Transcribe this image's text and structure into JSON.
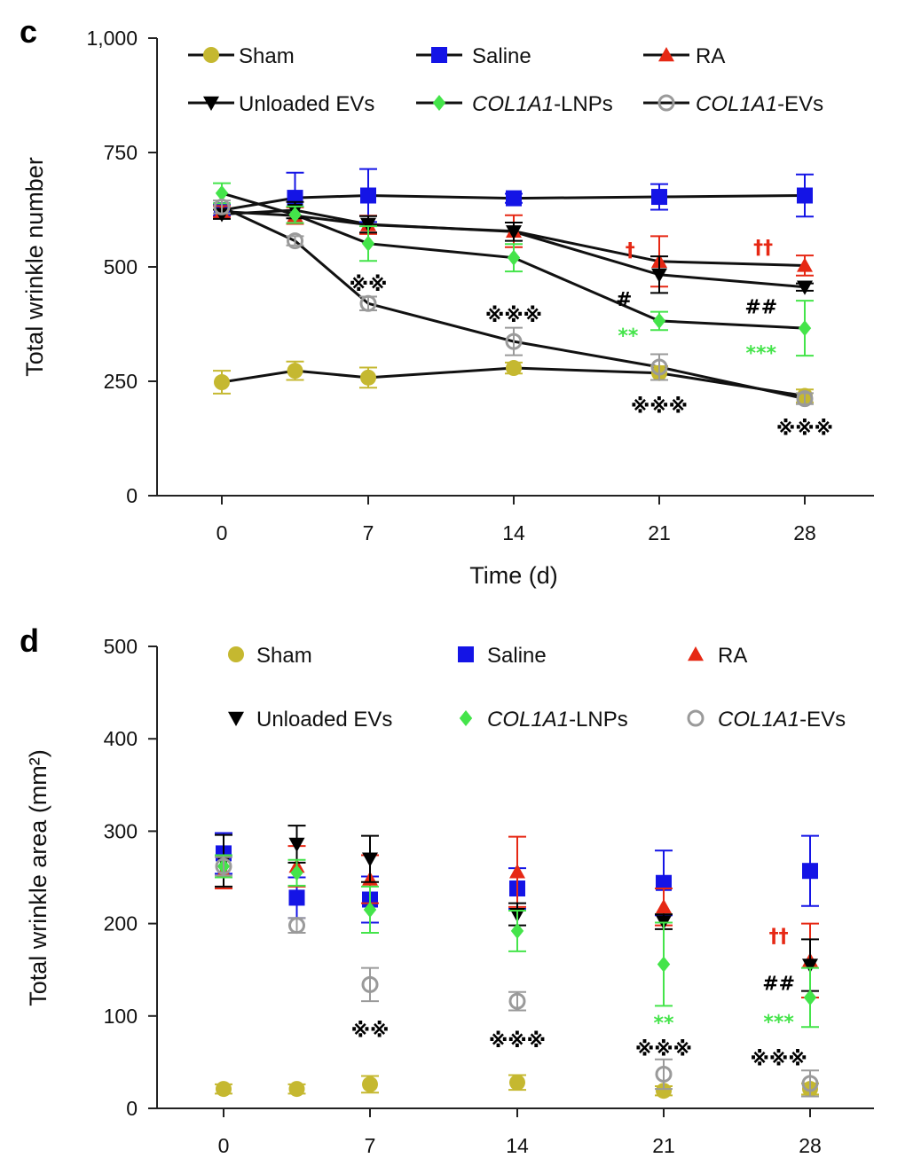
{
  "chart_data": [
    {
      "panel_label": "c",
      "type": "line",
      "xlabel": "Time (d)",
      "ylabel": "Total wrinkle number",
      "ylim": [
        0,
        1000
      ],
      "xlim": [
        -3,
        31
      ],
      "xticks": [
        "0",
        "7",
        "14",
        "21",
        "28"
      ],
      "yticks": [
        "0",
        "250",
        "500",
        "750",
        "1,000"
      ],
      "legend_position": "top",
      "series": [
        {
          "name": "Sham",
          "marker": "circle",
          "color": "#c5b830",
          "x": [
            0,
            3.5,
            7,
            14,
            21,
            28
          ],
          "y": [
            248,
            273,
            258,
            279,
            268,
            218
          ],
          "err": [
            25,
            20,
            22,
            12,
            15,
            14
          ]
        },
        {
          "name": "Saline",
          "marker": "square",
          "color": "#1414e6",
          "x": [
            0,
            3.5,
            7,
            14,
            21,
            28
          ],
          "y": [
            624,
            651,
            656,
            650,
            653,
            656
          ],
          "err": [
            12,
            55,
            58,
            10,
            28,
            46
          ]
        },
        {
          "name": "RA",
          "marker": "triangle-up",
          "color": "#e62814",
          "x": [
            0,
            3.5,
            7,
            14,
            21,
            28
          ],
          "y": [
            621,
            612,
            592,
            578,
            512,
            503
          ],
          "err": [
            12,
            18,
            20,
            35,
            55,
            22
          ]
        },
        {
          "name": "Unloaded EVs",
          "marker": "triangle-down",
          "color": "#000000",
          "x": [
            0,
            3.5,
            7,
            14,
            21,
            28
          ],
          "y": [
            615,
            624,
            593,
            577,
            483,
            456
          ],
          "err": [
            10,
            18,
            18,
            20,
            40,
            8
          ]
        },
        {
          "name": "COL1A1-LNPs",
          "marker": "diamond",
          "color": "#44e44a",
          "x": [
            0,
            3.5,
            7,
            14,
            21,
            28
          ],
          "y": [
            661,
            614,
            551,
            520,
            382,
            366
          ],
          "err": [
            22,
            18,
            38,
            30,
            20,
            60
          ]
        },
        {
          "name": "COL1A1-EVs",
          "marker": "circle-open",
          "color": "#9a9a9a",
          "x": [
            0,
            3.5,
            7,
            14,
            21,
            28
          ],
          "y": [
            631,
            557,
            420,
            337,
            281,
            212
          ],
          "err": [
            14,
            10,
            15,
            30,
            28,
            12
          ]
        }
      ],
      "annotations": [
        {
          "text": "※※",
          "x": 7,
          "y": 463,
          "color": "#000000"
        },
        {
          "text": "※※※",
          "x": 14,
          "y": 395,
          "color": "#000000"
        },
        {
          "text": "※※※",
          "x": 21,
          "y": 197,
          "color": "#000000"
        },
        {
          "text": "※※※",
          "x": 28,
          "y": 148,
          "color": "#000000"
        },
        {
          "text": "†",
          "x": 19.6,
          "y": 538,
          "color": "#e62814"
        },
        {
          "text": "††",
          "x": 26,
          "y": 544,
          "color": "#e62814"
        },
        {
          "text": "#",
          "x": 19.3,
          "y": 430,
          "color": "#000000"
        },
        {
          "text": "##",
          "x": 25.9,
          "y": 414,
          "color": "#000000"
        },
        {
          "text": "**",
          "x": 19.5,
          "y": 351,
          "color": "#44e44a"
        },
        {
          "text": "***",
          "x": 25.9,
          "y": 313,
          "color": "#44e44a"
        }
      ]
    },
    {
      "panel_label": "d",
      "type": "scatter",
      "xlabel": "",
      "ylabel": "Total wrinkle area (mm²)",
      "ylim": [
        0,
        500
      ],
      "xlim": [
        -3,
        31
      ],
      "xticks": [
        "0",
        "7",
        "14",
        "21",
        "28"
      ],
      "yticks": [
        "0",
        "100",
        "200",
        "300",
        "400",
        "500"
      ],
      "legend_position": "top",
      "series": [
        {
          "name": "Sham",
          "marker": "circle",
          "color": "#c5b830",
          "x": [
            0,
            3.5,
            7,
            14,
            21,
            28
          ],
          "y": [
            21,
            21,
            26,
            28,
            19,
            21
          ],
          "err": [
            5,
            5,
            9,
            8,
            5,
            6
          ]
        },
        {
          "name": "Saline",
          "marker": "square",
          "color": "#1414e6",
          "x": [
            0,
            3.5,
            7,
            14,
            21,
            28
          ],
          "y": [
            276,
            228,
            226,
            238,
            244,
            257
          ],
          "err": [
            22,
            22,
            25,
            22,
            35,
            38
          ]
        },
        {
          "name": "RA",
          "marker": "triangle-up",
          "color": "#e62814",
          "x": [
            0,
            3.5,
            7,
            14,
            21,
            28
          ],
          "y": [
            256,
            262,
            248,
            256,
            218,
            160
          ],
          "err": [
            18,
            22,
            26,
            38,
            20,
            40
          ]
        },
        {
          "name": "Unloaded EVs",
          "marker": "triangle-down",
          "color": "#000000",
          "x": [
            0,
            3.5,
            7,
            14,
            21,
            28
          ],
          "y": [
            268,
            286,
            270,
            210,
            202,
            155
          ],
          "err": [
            28,
            20,
            25,
            12,
            8,
            28
          ]
        },
        {
          "name": "COL1A1-LNPs",
          "marker": "diamond",
          "color": "#44e44a",
          "x": [
            0,
            3.5,
            7,
            14,
            21,
            28
          ],
          "y": [
            262,
            255,
            215,
            192,
            156,
            120
          ],
          "err": [
            12,
            14,
            25,
            22,
            45,
            32
          ]
        },
        {
          "name": "COL1A1-EVs",
          "marker": "circle-open",
          "color": "#9a9a9a",
          "x": [
            0,
            3.5,
            7,
            14,
            21,
            28
          ],
          "y": [
            262,
            198,
            134,
            116,
            37,
            27
          ],
          "err": [
            10,
            8,
            18,
            10,
            16,
            14
          ]
        }
      ],
      "annotations": [
        {
          "text": "※※",
          "x": 7,
          "y": 85,
          "color": "#000000"
        },
        {
          "text": "※※※",
          "x": 14,
          "y": 74,
          "color": "#000000"
        },
        {
          "text": "※※※",
          "x": 21,
          "y": 65,
          "color": "#000000"
        },
        {
          "text": "※※※",
          "x": 26.5,
          "y": 54,
          "color": "#000000"
        },
        {
          "text": "**",
          "x": 21,
          "y": 93,
          "color": "#44e44a"
        },
        {
          "text": "***",
          "x": 26.5,
          "y": 94,
          "color": "#44e44a"
        },
        {
          "text": "††",
          "x": 26.5,
          "y": 187,
          "color": "#e62814"
        },
        {
          "text": "##",
          "x": 26.5,
          "y": 136,
          "color": "#000000"
        }
      ]
    }
  ]
}
